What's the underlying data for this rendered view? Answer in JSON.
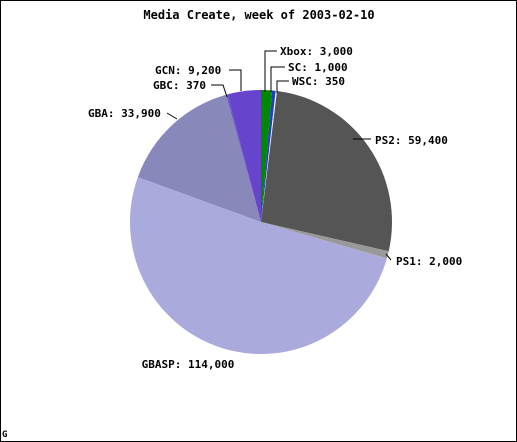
{
  "chart_data": {
    "type": "pie",
    "title": "Media Create, week of 2003-02-10",
    "slices": [
      {
        "label": "Xbox",
        "display": "Xbox: 3,000",
        "value": 3000,
        "color": "#008800"
      },
      {
        "label": "SC",
        "display": "SC: 1,000",
        "value": 1000,
        "color": "#1f3fc0"
      },
      {
        "label": "WSC",
        "display": "WSC: 350",
        "value": 350,
        "color": "#f4f4f4"
      },
      {
        "label": "PS2",
        "display": "PS2: 59,400",
        "value": 59400,
        "color": "#555555"
      },
      {
        "label": "PS1",
        "display": "PS1: 2,000",
        "value": 2000,
        "color": "#999999"
      },
      {
        "label": "GBASP",
        "display": "GBASP: 114,000",
        "value": 114000,
        "color": "#aaaadd"
      },
      {
        "label": "GBA",
        "display": "GBA: 33,900",
        "value": 33900,
        "color": "#8888bb"
      },
      {
        "label": "GBC",
        "display": "GBC: 370",
        "value": 370,
        "color": "#5a5ac0"
      },
      {
        "label": "GCN",
        "display": "GCN: 9,200",
        "value": 9200,
        "color": "#6644cc"
      }
    ],
    "legend": "none"
  },
  "corner_mark": "G"
}
